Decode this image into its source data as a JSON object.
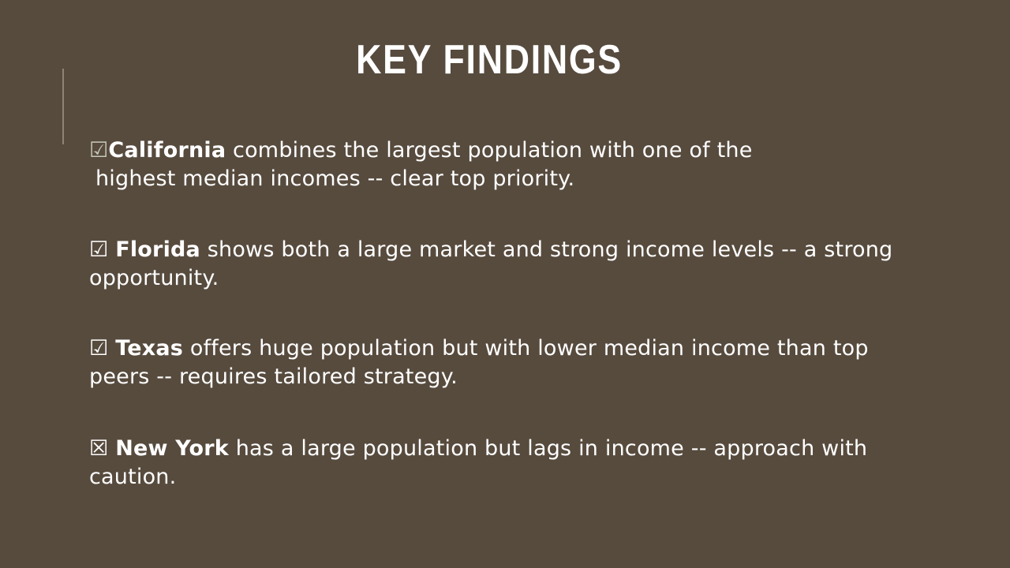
{
  "slide": {
    "title": "KEY FINDINGS",
    "findings": [
      {
        "box_icon": "☑",
        "icon_name": "checked-box-icon",
        "state": "California",
        "text_line1": " combines the largest population with one of the",
        "text_line2": "highest median incomes -- clear top priority."
      },
      {
        "box_icon": "☑",
        "icon_name": "checked-box-icon",
        "state": "Florida",
        "text": " shows both a large market and strong income levels -- a strong opportunity."
      },
      {
        "box_icon": "☑",
        "icon_name": "checked-box-icon",
        "state": "Texas",
        "text": " offers huge population but with lower median income than top peers -- requires tailored strategy."
      },
      {
        "box_icon": "☒",
        "icon_name": "x-box-icon",
        "state": "New York",
        "text": " has a large population but lags in income -- approach with caution."
      }
    ]
  }
}
